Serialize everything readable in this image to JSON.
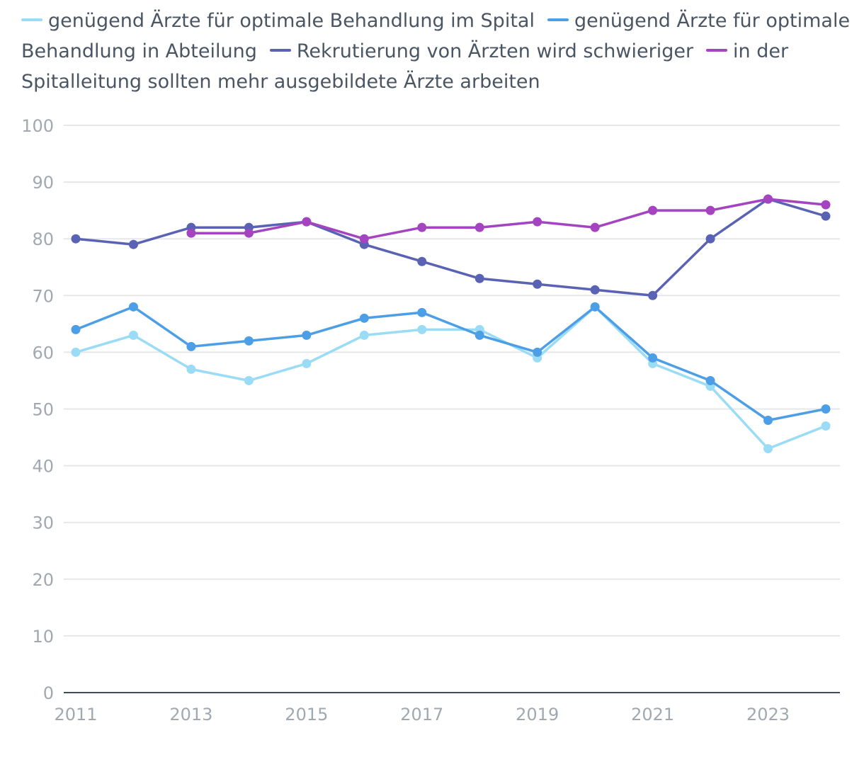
{
  "chart_data": {
    "type": "line",
    "title": "",
    "xlabel": "",
    "ylabel": "",
    "ylim": [
      0,
      100
    ],
    "yticks": [
      "0",
      "10",
      "20",
      "30",
      "40",
      "50",
      "60",
      "70",
      "80",
      "90",
      "100"
    ],
    "xlim": [
      2011,
      2024
    ],
    "xticks": [
      "2011",
      "2013",
      "2015",
      "2017",
      "2019",
      "2021",
      "2023"
    ],
    "grid": true,
    "legend_position": "top",
    "series": [
      {
        "name": "genügend Ärzte für optimale Behandlung im Spital",
        "color": "#9adcf6",
        "x": [
          2011,
          2012,
          2013,
          2014,
          2015,
          2016,
          2017,
          2018,
          2019,
          2020,
          2021,
          2022,
          2023,
          2024
        ],
        "values": [
          60,
          63,
          57,
          55,
          58,
          63,
          64,
          64,
          59,
          68,
          58,
          54,
          43,
          47
        ]
      },
      {
        "name": "genügend Ärzte für optimale Behandlung in Abteilung",
        "color": "#4c9fe6",
        "x": [
          2011,
          2012,
          2013,
          2014,
          2015,
          2016,
          2017,
          2018,
          2019,
          2020,
          2021,
          2022,
          2023,
          2024
        ],
        "values": [
          64,
          68,
          61,
          62,
          63,
          66,
          67,
          63,
          60,
          68,
          59,
          55,
          48,
          50
        ]
      },
      {
        "name": "Rekrutierung von Ärzten wird schwieriger",
        "color": "#5a62b4",
        "x": [
          2011,
          2012,
          2013,
          2014,
          2015,
          2016,
          2017,
          2018,
          2019,
          2020,
          2021,
          2022,
          2023,
          2024
        ],
        "values": [
          80,
          79,
          82,
          82,
          83,
          79,
          76,
          73,
          72,
          71,
          70,
          80,
          87,
          84
        ]
      },
      {
        "name": "in der Spitalleitung sollten mehr ausgebildete Ärzte arbeiten",
        "color": "#a444c0",
        "x": [
          2013,
          2014,
          2015,
          2016,
          2017,
          2018,
          2019,
          2020,
          2021,
          2022,
          2023,
          2024
        ],
        "values": [
          81,
          81,
          83,
          80,
          82,
          82,
          83,
          82,
          85,
          85,
          87,
          86
        ]
      }
    ]
  }
}
